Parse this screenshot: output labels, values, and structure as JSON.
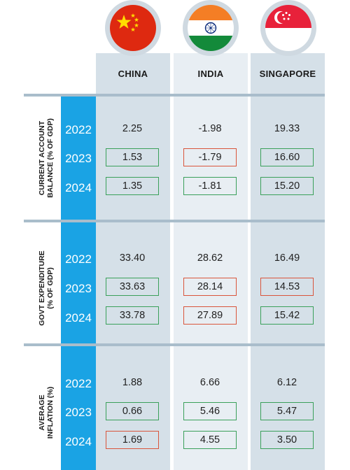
{
  "countries": [
    {
      "name": "CHINA",
      "flag": "china-flag"
    },
    {
      "name": "INDIA",
      "flag": "india-flag"
    },
    {
      "name": "SINGAPORE",
      "flag": "singapore-flag"
    }
  ],
  "colors": {
    "up_box": "#3aa05a",
    "down_box": "#d9553b",
    "year_strip": "#1aa3e4"
  },
  "sections": [
    {
      "label_line1": "CURRENT ACCOUNT",
      "label_line2": "BALANCE (% OF GDP)",
      "years": [
        "2022",
        "2023",
        "2024"
      ],
      "values": {
        "china": [
          "2.25",
          "1.53",
          "1.35"
        ],
        "india": [
          "-1.98",
          "-1.79",
          "-1.81"
        ],
        "singapore": [
          "19.33",
          "16.60",
          "15.20"
        ]
      }
    },
    {
      "label_line1": "GOVT EXPENDITURE",
      "label_line2": "(% OF GDP)",
      "years": [
        "2022",
        "2023",
        "2024"
      ],
      "values": {
        "china": [
          "33.40",
          "33.63",
          "33.78"
        ],
        "india": [
          "28.62",
          "28.14",
          "27.89"
        ],
        "singapore": [
          "16.49",
          "14.53",
          "15.42"
        ]
      }
    },
    {
      "label_line1": "AVERAGE",
      "label_line2": "INFLATION (%)",
      "years": [
        "2022",
        "2023",
        "2024"
      ],
      "values": {
        "china": [
          "1.88",
          "0.66",
          "1.69"
        ],
        "india": [
          "6.66",
          "5.46",
          "4.55"
        ],
        "singapore": [
          "6.12",
          "5.47",
          "3.50"
        ]
      }
    }
  ]
}
